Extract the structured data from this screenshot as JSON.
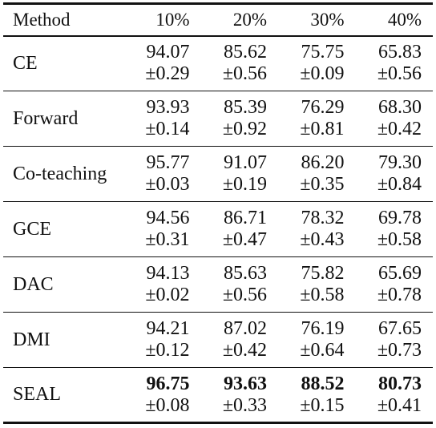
{
  "table": {
    "columns": [
      "Method",
      "10%",
      "20%",
      "30%",
      "40%"
    ],
    "rows": [
      {
        "method": "CE",
        "values": [
          {
            "mean": "94.07",
            "std": "±0.29"
          },
          {
            "mean": "85.62",
            "std": "±0.56"
          },
          {
            "mean": "75.75",
            "std": "±0.09"
          },
          {
            "mean": "65.83",
            "std": "±0.56"
          }
        ]
      },
      {
        "method": "Forward",
        "values": [
          {
            "mean": "93.93",
            "std": "±0.14"
          },
          {
            "mean": "85.39",
            "std": "±0.92"
          },
          {
            "mean": "76.29",
            "std": "±0.81"
          },
          {
            "mean": "68.30",
            "std": "±0.42"
          }
        ]
      },
      {
        "method": "Co-teaching",
        "values": [
          {
            "mean": "95.77",
            "std": "±0.03"
          },
          {
            "mean": "91.07",
            "std": "±0.19"
          },
          {
            "mean": "86.20",
            "std": "±0.35"
          },
          {
            "mean": "79.30",
            "std": "±0.84"
          }
        ]
      },
      {
        "method": "GCE",
        "values": [
          {
            "mean": "94.56",
            "std": "±0.31"
          },
          {
            "mean": "86.71",
            "std": "±0.47"
          },
          {
            "mean": "78.32",
            "std": "±0.43"
          },
          {
            "mean": "69.78",
            "std": "±0.58"
          }
        ]
      },
      {
        "method": "DAC",
        "values": [
          {
            "mean": "94.13",
            "std": "±0.02"
          },
          {
            "mean": "85.63",
            "std": "±0.56"
          },
          {
            "mean": "75.82",
            "std": "±0.58"
          },
          {
            "mean": "65.69",
            "std": "±0.78"
          }
        ]
      },
      {
        "method": "DMI",
        "values": [
          {
            "mean": "94.21",
            "std": "±0.12"
          },
          {
            "mean": "87.02",
            "std": "±0.42"
          },
          {
            "mean": "76.19",
            "std": "±0.64"
          },
          {
            "mean": "67.65",
            "std": "±0.73"
          }
        ]
      },
      {
        "method": "SEAL",
        "values": [
          {
            "mean": "96.75",
            "std": "±0.08"
          },
          {
            "mean": "93.63",
            "std": "±0.33"
          },
          {
            "mean": "88.52",
            "std": "±0.15"
          },
          {
            "mean": "80.73",
            "std": "±0.41"
          }
        ]
      }
    ]
  }
}
